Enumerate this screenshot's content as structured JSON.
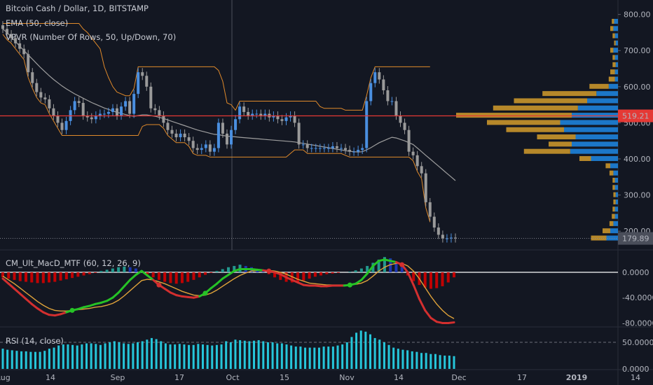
{
  "header": {
    "title": "Bitcoin Cash / Dollar, 1D, BITSTAMP",
    "ema_label": "EMA (50, close)",
    "vpvr_label": "VPVR (Number Of Rows, 50, Up/Down, 70)"
  },
  "panes": {
    "macd_label": "CM_Ult_MacD_MTF (60, 12, 26, 9)",
    "rsi_label": "RSI (14, close)"
  },
  "colors": {
    "background": "#131722",
    "up_candle": "#4a8fe0",
    "down_candle": "#9a9a9a",
    "ema": "#9e9e9e",
    "channel": "#e08a2b",
    "price_line": "#e53935",
    "vp_up": "#1e88e5",
    "vp_down": "#d39c2b",
    "macd_rise": "#26c226",
    "macd_fall": "#d32f2f",
    "signal": "#e0a33a",
    "hist_pos": "#26a69a",
    "hist_pos_weak": "#1f3bc0",
    "hist_neg": "#d50000",
    "rsi_bar": "#26c6da"
  },
  "chart_data": [
    {
      "type": "candlestick",
      "title": "Bitcoin Cash / Dollar, 1D, BITSTAMP",
      "ylim": [
        150,
        840
      ],
      "y_ticks": [
        "800.00",
        "700.00",
        "600.00",
        "500.00",
        "400.00",
        "300.00",
        "200.00"
      ],
      "x_ticks": [
        "Aug",
        "14",
        "Sep",
        "17",
        "Oct",
        "15",
        "Nov",
        "14",
        "Dec",
        "17",
        "2019",
        "14"
      ],
      "current_price": "179.89",
      "marked_price": "519.21",
      "candles_close": [
        760,
        745,
        735,
        720,
        705,
        690,
        640,
        610,
        585,
        570,
        565,
        540,
        520,
        500,
        480,
        505,
        535,
        560,
        555,
        520,
        515,
        510,
        520,
        525,
        525,
        530,
        540,
        520,
        545,
        560,
        525,
        580,
        640,
        630,
        600,
        540,
        535,
        520,
        500,
        480,
        470,
        460,
        470,
        460,
        450,
        430,
        425,
        430,
        440,
        420,
        430,
        500,
        470,
        440,
        480,
        510,
        545,
        530,
        520,
        525,
        525,
        520,
        525,
        515,
        520,
        510,
        505,
        515,
        520,
        500,
        440,
        440,
        430,
        430,
        430,
        430,
        430,
        430,
        435,
        430,
        430,
        425,
        420,
        420,
        425,
        430,
        560,
        610,
        640,
        620,
        590,
        560,
        560,
        520,
        500,
        480,
        420,
        410,
        380,
        360,
        280,
        240,
        210,
        190,
        180,
        180,
        182,
        180
      ],
      "ema50": [
        760,
        750,
        738,
        725,
        712,
        700,
        688,
        676,
        664,
        652,
        641,
        630,
        620,
        611,
        602,
        594,
        587,
        580,
        574,
        568,
        562,
        556,
        551,
        546,
        541,
        537,
        533,
        529,
        526,
        523,
        520,
        518,
        520,
        522,
        522,
        520,
        518,
        515,
        512,
        508,
        504,
        500,
        496,
        492,
        488,
        484,
        480,
        477,
        474,
        471,
        468,
        467,
        465,
        463,
        462,
        461,
        460,
        459,
        458,
        457,
        456,
        455,
        454,
        453,
        452,
        451,
        450,
        449,
        448,
        447,
        445,
        443,
        441,
        439,
        437,
        435,
        433,
        431,
        429,
        427,
        425,
        423,
        421,
        420,
        419,
        420,
        425,
        431,
        438,
        445,
        450,
        455,
        460,
        458,
        454,
        450,
        445,
        440,
        430,
        420,
        410,
        400,
        390,
        380,
        370,
        360,
        350,
        340
      ],
      "vpvr_levels": [
        780,
        760,
        740,
        720,
        700,
        680,
        660,
        640,
        620,
        600,
        580,
        560,
        540,
        520,
        500,
        480,
        460,
        440,
        420,
        400,
        380,
        360,
        340,
        320,
        300,
        280,
        260,
        240,
        220,
        200,
        180
      ],
      "vpvr_up": [
        5,
        6,
        4,
        3,
        6,
        4,
        3,
        4,
        4,
        12,
        28,
        40,
        52,
        60,
        75,
        70,
        55,
        60,
        62,
        35,
        10,
        6,
        4,
        4,
        3,
        3,
        4,
        4,
        6,
        10,
        15
      ],
      "vpvr_down": [
        3,
        4,
        3,
        2,
        4,
        3,
        4,
        6,
        8,
        25,
        70,
        95,
        110,
        150,
        95,
        75,
        50,
        30,
        60,
        15,
        6,
        5,
        3,
        3,
        3,
        3,
        3,
        4,
        5,
        10,
        20
      ]
    },
    {
      "type": "line",
      "title": "CM_Ult_MacD_MTF (60, 12, 26, 9)",
      "ylim": [
        -85,
        32
      ],
      "y_ticks": [
        "0.0000",
        "-40.0000",
        "-80.0000"
      ],
      "macd": [
        -10,
        -18,
        -26,
        -34,
        -42,
        -50,
        -57,
        -63,
        -67,
        -68,
        -66,
        -63,
        -60,
        -58,
        -55,
        -53,
        -50,
        -48,
        -45,
        -40,
        -32,
        -22,
        -12,
        -4,
        2,
        -5,
        -12,
        -20,
        -26,
        -32,
        -36,
        -38,
        -39,
        -40,
        -38,
        -33,
        -25,
        -18,
        -10,
        -4,
        2,
        5,
        5,
        5,
        4,
        3,
        2,
        0,
        -3,
        -8,
        -12,
        -16,
        -20,
        -21,
        -21,
        -22,
        -22,
        -21,
        -21,
        -21,
        -20,
        -18,
        -12,
        -2,
        10,
        18,
        20,
        18,
        16,
        12,
        0,
        -20,
        -42,
        -60,
        -72,
        -78,
        -80,
        -80,
        -79
      ],
      "signal": [
        -6,
        -12,
        -18,
        -25,
        -32,
        -39,
        -46,
        -52,
        -57,
        -60,
        -61,
        -61,
        -60,
        -59,
        -58,
        -57,
        -55,
        -54,
        -52,
        -49,
        -44,
        -37,
        -29,
        -21,
        -13,
        -11,
        -12,
        -15,
        -18,
        -22,
        -26,
        -30,
        -33,
        -36,
        -37,
        -36,
        -33,
        -28,
        -22,
        -16,
        -10,
        -5,
        -1,
        2,
        3,
        3,
        3,
        2,
        0,
        -3,
        -7,
        -11,
        -14,
        -17,
        -18,
        -19,
        -20,
        -20,
        -20,
        -20,
        -20,
        -19,
        -17,
        -13,
        -6,
        2,
        8,
        12,
        14,
        14,
        10,
        2,
        -10,
        -24,
        -38,
        -50,
        -60,
        -68,
        -73
      ],
      "hist": [
        -8,
        -10,
        -12,
        -14,
        -15,
        -16,
        -17,
        -17,
        -16,
        -15,
        -13,
        -11,
        -9,
        -7,
        -5,
        -3,
        -1,
        2,
        4,
        6,
        8,
        9,
        8,
        6,
        3,
        -3,
        -8,
        -12,
        -15,
        -17,
        -18,
        -17,
        -15,
        -12,
        -8,
        -4,
        -1,
        2,
        5,
        8,
        10,
        12,
        10,
        8,
        5,
        2,
        -3,
        -8,
        -12,
        -15,
        -16,
        -15,
        -13,
        -10,
        -7,
        -5,
        -3,
        -2,
        -1,
        0,
        1,
        3,
        6,
        10,
        15,
        20,
        24,
        22,
        16,
        8,
        -5,
        -14,
        -20,
        -24,
        -26,
        -25,
        -22,
        -16,
        -8
      ]
    },
    {
      "type": "bar",
      "title": "RSI (14, close)",
      "ylim": [
        0,
        75
      ],
      "y_ticks": [
        "50.0000",
        "0.0000"
      ],
      "values": [
        38,
        36,
        35,
        34,
        33,
        33,
        32,
        32,
        32,
        34,
        38,
        40,
        44,
        46,
        46,
        45,
        44,
        46,
        48,
        48,
        47,
        45,
        48,
        50,
        52,
        50,
        48,
        47,
        48,
        50,
        52,
        55,
        58,
        56,
        52,
        48,
        46,
        46,
        47,
        46,
        45,
        45,
        47,
        46,
        45,
        44,
        45,
        46,
        52,
        50,
        55,
        54,
        53,
        52,
        53,
        54,
        52,
        50,
        50,
        48,
        48,
        46,
        44,
        42,
        42,
        40,
        40,
        40,
        40,
        42,
        42,
        42,
        44,
        46,
        50,
        60,
        68,
        72,
        70,
        65,
        58,
        55,
        50,
        45,
        40,
        38,
        36,
        35,
        33,
        32,
        30,
        30,
        28,
        28,
        26,
        25,
        25,
        24
      ]
    }
  ]
}
